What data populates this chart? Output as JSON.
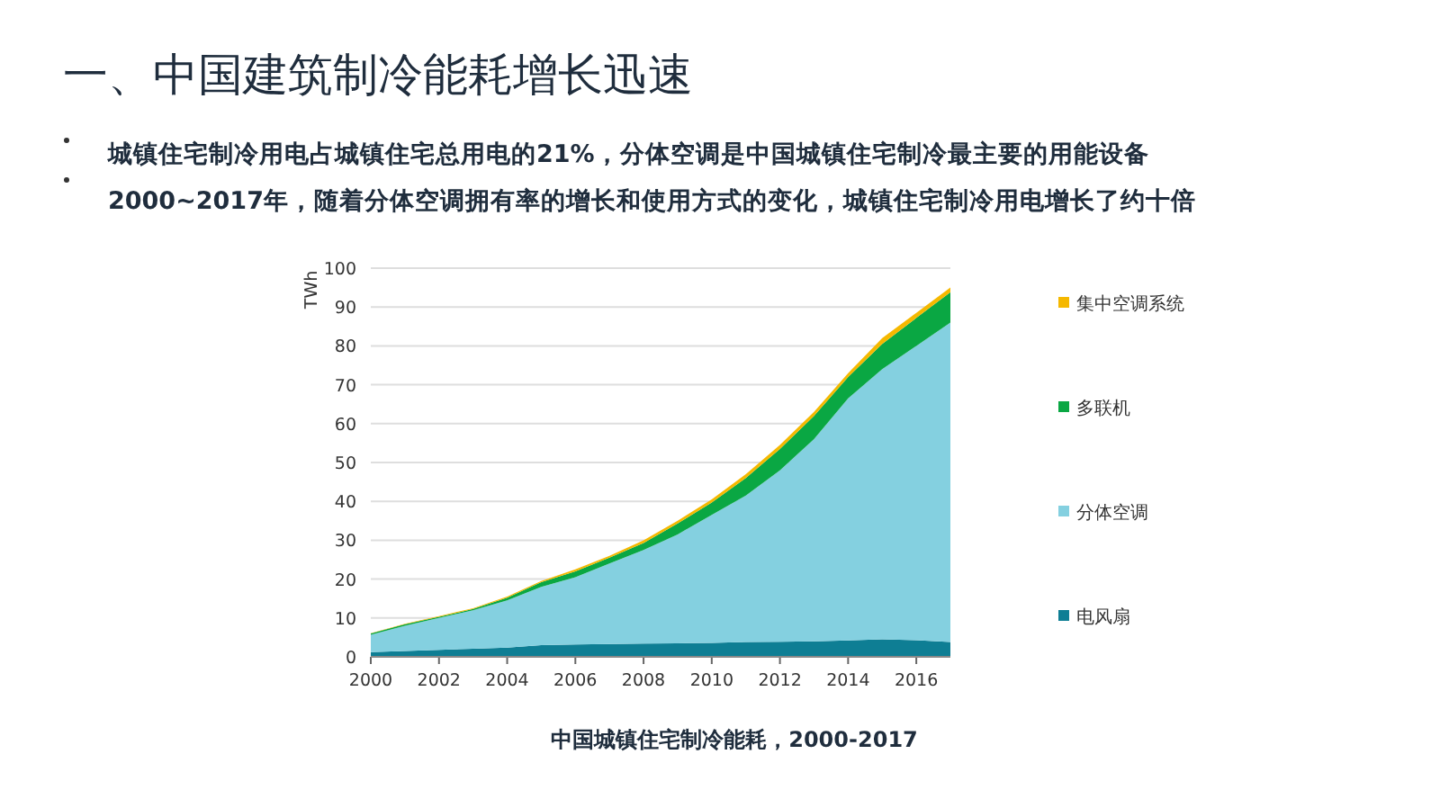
{
  "chart_data": {
    "type": "area",
    "stacked": true,
    "title": "一、中国建筑制冷能耗增长迅速",
    "annotations": [
      "城镇住宅制冷用电占城镇住宅总用电的21%，分体空调是中国城镇住宅制冷最主要的用能设备",
      "2000~2017年，随着分体空调拥有率的增长和使用方式的变化，城镇住宅制冷用电增长了约十倍",
      "中国城镇住宅制冷能耗，2000-2017"
    ],
    "ylabel": "TWh",
    "x": [
      2000,
      2001,
      2002,
      2003,
      2004,
      2005,
      2006,
      2007,
      2008,
      2009,
      2010,
      2011,
      2012,
      2013,
      2014,
      2015,
      2016,
      2017
    ],
    "series": [
      {
        "name": "电风扇",
        "color": "#0e7e94",
        "values": [
          1.2,
          1.5,
          1.8,
          2.1,
          2.4,
          3.0,
          3.2,
          3.3,
          3.4,
          3.5,
          3.6,
          3.8,
          3.9,
          4.0,
          4.2,
          4.5,
          4.3,
          3.8
        ]
      },
      {
        "name": "分体空调",
        "color": "#84d0e0",
        "values": [
          4.5,
          6.5,
          8.2,
          9.9,
          12.1,
          15.0,
          17.3,
          20.7,
          24.1,
          28.0,
          32.9,
          37.7,
          44.1,
          52.0,
          62.3,
          69.5,
          75.7,
          82.2
        ]
      },
      {
        "name": "多联机",
        "color": "#0aa743",
        "values": [
          0.3,
          0.4,
          0.3,
          0.3,
          0.7,
          1.2,
          1.5,
          1.5,
          1.8,
          2.8,
          3.2,
          4.5,
          5.5,
          6.0,
          5.5,
          6.5,
          7.2,
          7.8
        ]
      },
      {
        "name": "集中空调系统",
        "color": "#f5b800",
        "values": [
          0.1,
          0.1,
          0.2,
          0.2,
          0.3,
          0.3,
          0.5,
          0.5,
          0.7,
          0.7,
          0.8,
          1.0,
          1.0,
          1.0,
          1.0,
          1.5,
          1.3,
          1.2
        ]
      }
    ],
    "xlim": [
      2000,
      2017
    ],
    "xticks": [
      2000,
      2002,
      2004,
      2006,
      2008,
      2010,
      2012,
      2014,
      2016
    ],
    "ylim": [
      0,
      100
    ],
    "yticks": [
      0,
      10,
      20,
      30,
      40,
      50,
      60,
      70,
      80,
      90,
      100
    ],
    "grid": "y",
    "legend": "right"
  }
}
